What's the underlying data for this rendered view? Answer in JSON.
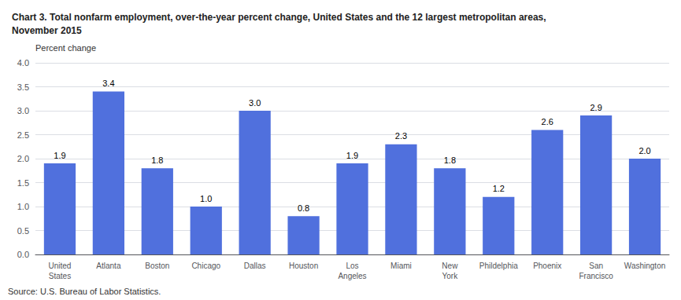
{
  "chart_data": {
    "type": "bar",
    "title": "Chart 3. Total nonfarm employment, over-the-year percent change, United States and the 12 largest metropolitan areas,\nNovember 2015",
    "ylabel": "Percent change",
    "source": "Source: U.S. Bureau of Labor Statistics.",
    "categories": [
      "United\nStates",
      "Atlanta",
      "Boston",
      "Chicago",
      "Dallas",
      "Houston",
      "Los\nAngeles",
      "Miami",
      "New\nYork",
      "Phildelphia",
      "Phoenix",
      "San\nFrancisco",
      "Washington"
    ],
    "values": [
      1.9,
      3.4,
      1.8,
      1.0,
      3.0,
      0.8,
      1.9,
      2.3,
      1.8,
      1.2,
      2.6,
      2.9,
      2.0
    ],
    "value_labels": [
      "1.9",
      "3.4",
      "1.8",
      "1.0",
      "3.0",
      "0.8",
      "1.9",
      "2.3",
      "1.8",
      "1.2",
      "2.6",
      "2.9",
      "2.0"
    ],
    "data_labels": true,
    "ylim": [
      0,
      4.0
    ],
    "yticks": [
      {
        "value": 0.0,
        "label": "0.0"
      },
      0.5,
      {
        "value": 1.0,
        "label": "1.0"
      },
      1.5,
      {
        "value": 2.0,
        "label": "2.0"
      },
      2.5,
      {
        "value": 3.0,
        "label": "3.0"
      },
      3.5,
      {
        "value": 4.0,
        "label": "4.0"
      }
    ],
    "grid": true
  }
}
